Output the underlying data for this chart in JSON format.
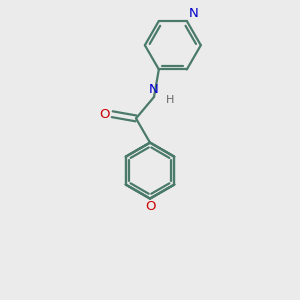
{
  "bg_color": "#ebebeb",
  "bond_color": "#4a7a6a",
  "N_color": "#0000cc",
  "O_color": "#cc0000",
  "H_color": "#666666",
  "line_width": 1.6,
  "figsize": [
    3.0,
    3.0
  ],
  "dpi": 100,
  "xlim": [
    0,
    10
  ],
  "ylim": [
    0,
    10
  ]
}
